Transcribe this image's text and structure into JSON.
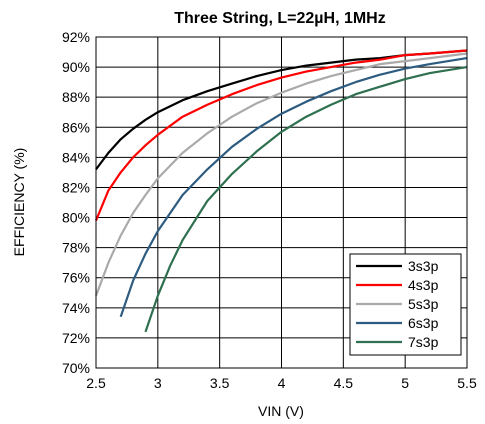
{
  "chart_data": {
    "type": "line",
    "title": "Three String, L=22µH, 1MHz",
    "xlabel": "VIN (V)",
    "ylabel": "EFFICIENCY (%)",
    "xlim": [
      2.5,
      5.5
    ],
    "ylim": [
      70,
      92
    ],
    "xticks": [
      2.5,
      3,
      3.5,
      4,
      4.5,
      5,
      5.5
    ],
    "xtick_labels": [
      "2.5",
      "3",
      "3.5",
      "4",
      "4.5",
      "5",
      "5.5"
    ],
    "yticks": [
      70,
      72,
      74,
      76,
      78,
      80,
      82,
      84,
      86,
      88,
      90,
      92
    ],
    "ytick_labels": [
      "70%",
      "72%",
      "74%",
      "76%",
      "78%",
      "80%",
      "82%",
      "84%",
      "86%",
      "88%",
      "90%",
      "92%"
    ],
    "grid": true,
    "legend_position": "bottom-right",
    "series": [
      {
        "name": "3s3p",
        "color": "#000000",
        "x": [
          2.5,
          2.6,
          2.7,
          2.8,
          2.9,
          3.0,
          3.2,
          3.4,
          3.6,
          3.8,
          4.0,
          4.2,
          4.4,
          4.6,
          4.8,
          5.0,
          5.2,
          5.5
        ],
        "y": [
          83.2,
          84.3,
          85.2,
          85.9,
          86.5,
          87.0,
          87.8,
          88.4,
          88.9,
          89.4,
          89.8,
          90.1,
          90.3,
          90.5,
          90.6,
          90.8,
          90.9,
          91.1
        ]
      },
      {
        "name": "4s3p",
        "color": "#ff0000",
        "x": [
          2.5,
          2.6,
          2.7,
          2.8,
          2.9,
          3.0,
          3.2,
          3.4,
          3.6,
          3.8,
          4.0,
          4.2,
          4.4,
          4.6,
          4.8,
          5.0,
          5.2,
          5.5
        ],
        "y": [
          79.8,
          81.8,
          83.0,
          84.0,
          84.8,
          85.5,
          86.7,
          87.5,
          88.2,
          88.8,
          89.3,
          89.7,
          90.0,
          90.3,
          90.5,
          90.8,
          90.9,
          91.1
        ]
      },
      {
        "name": "5s3p",
        "color": "#aaaaaa",
        "x": [
          2.5,
          2.6,
          2.7,
          2.8,
          2.9,
          3.0,
          3.2,
          3.4,
          3.6,
          3.8,
          4.0,
          4.2,
          4.4,
          4.6,
          4.8,
          5.0,
          5.2,
          5.5
        ],
        "y": [
          74.8,
          77.0,
          78.8,
          80.3,
          81.5,
          82.6,
          84.3,
          85.6,
          86.7,
          87.6,
          88.3,
          88.9,
          89.4,
          89.8,
          90.2,
          90.4,
          90.6,
          90.9
        ]
      },
      {
        "name": "6s3p",
        "color": "#2e5c80",
        "x": [
          2.7,
          2.8,
          2.9,
          3.0,
          3.2,
          3.4,
          3.6,
          3.8,
          4.0,
          4.2,
          4.4,
          4.6,
          4.8,
          5.0,
          5.2,
          5.5
        ],
        "y": [
          73.4,
          75.8,
          77.6,
          79.1,
          81.5,
          83.2,
          84.7,
          85.9,
          86.9,
          87.7,
          88.4,
          89.0,
          89.5,
          89.9,
          90.2,
          90.6
        ]
      },
      {
        "name": "7s3p",
        "color": "#2e7050",
        "x": [
          2.9,
          3.0,
          3.1,
          3.2,
          3.4,
          3.6,
          3.8,
          4.0,
          4.2,
          4.4,
          4.6,
          4.8,
          5.0,
          5.2,
          5.5
        ],
        "y": [
          72.4,
          74.8,
          76.8,
          78.5,
          81.1,
          82.9,
          84.4,
          85.7,
          86.7,
          87.5,
          88.2,
          88.7,
          89.2,
          89.6,
          90.0
        ]
      }
    ]
  }
}
